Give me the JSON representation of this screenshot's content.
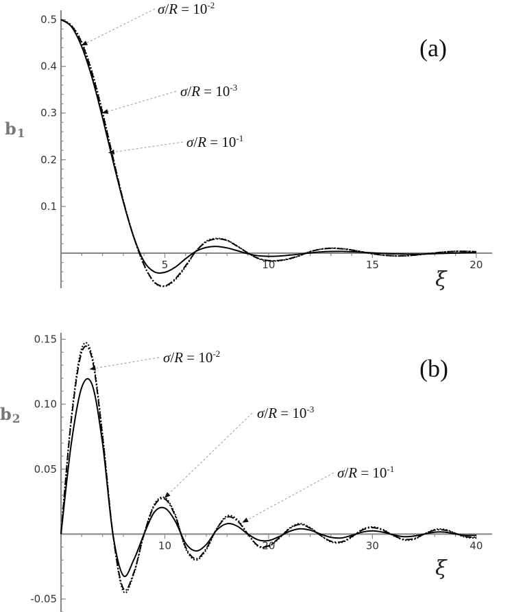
{
  "colors": {
    "axis": "#888888",
    "curve": "#000000",
    "annotation_line": "#9a9a9a"
  },
  "chart_data": [
    {
      "type": "line",
      "panel_label": "(a)",
      "xlabel": "ξ",
      "ylabel": "b",
      "ylabel_sub": "1",
      "xlim": [
        0,
        20.5
      ],
      "ylim": [
        -0.075,
        0.52
      ],
      "xticks": [
        5,
        10,
        15,
        20
      ],
      "xtick_labels": [
        "5",
        "10",
        "15",
        "20"
      ],
      "yticks": [
        0.1,
        0.2,
        0.3,
        0.4,
        0.5
      ],
      "ytick_labels": [
        "0.1",
        "0.2",
        "0.3",
        "0.4",
        "0.5"
      ],
      "series": [
        {
          "style": "solid",
          "x": [
            0,
            0.5,
            1,
            1.5,
            2,
            2.5,
            3,
            3.5,
            4,
            4.5,
            5,
            5.5,
            6,
            6.5,
            7,
            7.5,
            8,
            8.5,
            9,
            9.5,
            10,
            10.5,
            11,
            11.5,
            12,
            12.5,
            13,
            13.5,
            14,
            14.5,
            15,
            15.5,
            16,
            16.5,
            17,
            17.5,
            18,
            18.5,
            19,
            19.5,
            20
          ],
          "y": [
            0.5,
            0.485,
            0.442,
            0.375,
            0.29,
            0.198,
            0.11,
            0.035,
            -0.018,
            -0.04,
            -0.041,
            -0.03,
            -0.012,
            0.004,
            0.0122,
            0.0143,
            0.0112,
            0.0051,
            -0.0012,
            -0.0055,
            -0.0068,
            -0.0062,
            -0.0044,
            -0.0021,
            0.0005,
            0.0026,
            0.0036,
            0.0037,
            0.003,
            0.0018,
            0.0006,
            -0.0006,
            -0.0015,
            -0.002,
            -0.0021,
            -0.0018,
            -0.0012,
            -0.0005,
            0.0002,
            0.0008,
            0.0011
          ]
        },
        {
          "style": "dash-dot",
          "x": [
            0,
            0.5,
            1,
            1.5,
            2,
            2.5,
            3,
            3.5,
            4,
            4.5,
            5,
            5.5,
            6,
            6.5,
            7,
            7.5,
            8,
            8.5,
            9,
            9.5,
            10,
            10.5,
            11,
            11.5,
            12,
            12.5,
            13,
            13.5,
            14,
            14.5,
            15,
            15.5,
            16,
            16.5,
            17,
            17.5,
            18,
            18.5,
            19,
            19.5,
            20
          ],
          "y": [
            0.5,
            0.487,
            0.45,
            0.385,
            0.3,
            0.205,
            0.112,
            0.035,
            -0.025,
            -0.062,
            -0.07,
            -0.055,
            -0.027,
            0.004,
            0.024,
            0.0305,
            0.027,
            0.0145,
            0.0004,
            -0.0111,
            -0.0158,
            -0.0157,
            -0.0118,
            -0.005,
            0.0032,
            0.0082,
            0.0103,
            0.0094,
            0.0066,
            0.0026,
            -0.0012,
            -0.0042,
            -0.0057,
            -0.0057,
            -0.0043,
            -0.0021,
            0.0004,
            0.0026,
            0.0037,
            0.0038,
            0.003
          ]
        },
        {
          "style": "dotted",
          "x": [
            0,
            0.5,
            1,
            1.5,
            2,
            2.5,
            3,
            3.5,
            4,
            4.5,
            5,
            5.5,
            6,
            6.5,
            7,
            7.5,
            8,
            8.5,
            9,
            9.5,
            10,
            10.5,
            11,
            11.5,
            12,
            12.5,
            13,
            13.5,
            14,
            14.5,
            15,
            15.5,
            16,
            16.5,
            17,
            17.5,
            18,
            18.5,
            19,
            19.5,
            20
          ],
          "y": [
            0.5,
            0.488,
            0.452,
            0.388,
            0.303,
            0.207,
            0.113,
            0.035,
            -0.026,
            -0.063,
            -0.071,
            -0.057,
            -0.029,
            0.004,
            0.0255,
            0.0315,
            0.0275,
            0.015,
            0.0005,
            -0.0118,
            -0.0165,
            -0.0164,
            -0.0124,
            -0.0055,
            0.0034,
            0.0086,
            0.0108,
            0.0098,
            0.007,
            0.0028,
            -0.0014,
            -0.0045,
            -0.006,
            -0.006,
            -0.0046,
            -0.0022,
            0.0004,
            0.0027,
            0.004,
            0.004,
            0.0032
          ]
        }
      ],
      "annotations": [
        {
          "text_pre": "σ",
          "text_mid": "/",
          "text_var": "R",
          "text_eq": " = 10",
          "text_sup": "-2",
          "target": [
            1.0,
            0.445
          ]
        },
        {
          "text_pre": "σ",
          "text_mid": "/",
          "text_var": "R",
          "text_eq": " = 10",
          "text_sup": "-3",
          "target": [
            2.0,
            0.3
          ]
        },
        {
          "text_pre": "σ",
          "text_mid": "/",
          "text_var": "R",
          "text_eq": " = 10",
          "text_sup": "-1",
          "target": [
            2.3,
            0.215
          ]
        }
      ]
    },
    {
      "type": "line",
      "panel_label": "(b)",
      "xlabel": "ξ",
      "ylabel": "b",
      "ylabel_sub": "2",
      "xlim": [
        0,
        41
      ],
      "ylim": [
        -0.06,
        0.155
      ],
      "xticks": [
        10,
        20,
        30,
        40
      ],
      "xtick_labels": [
        "10",
        "20",
        "30",
        "40"
      ],
      "yticks": [
        -0.05,
        0.05,
        0.1,
        0.15
      ],
      "ytick_labels": [
        "-0.05",
        "0.05",
        "0.10",
        "0.15"
      ],
      "series": [
        {
          "style": "solid",
          "x": [
            0,
            1,
            2,
            3,
            4,
            5,
            6,
            7,
            8,
            9,
            10,
            11,
            12,
            13,
            14,
            15,
            16,
            17,
            18,
            19,
            20,
            21,
            22,
            23,
            24,
            25,
            26,
            27,
            28,
            29,
            30,
            31,
            32,
            33,
            34,
            35,
            36,
            37,
            38,
            39,
            40
          ],
          "y": [
            0,
            0.07,
            0.113,
            0.115,
            0.07,
            0.0,
            -0.032,
            -0.02,
            0.0,
            0.017,
            0.02,
            0.01,
            -0.007,
            -0.013,
            -0.008,
            0.003,
            0.008,
            0.006,
            0.0,
            -0.0045,
            -0.005,
            -0.002,
            0.002,
            0.004,
            0.003,
            0.0,
            -0.0025,
            -0.003,
            -0.001,
            0.0015,
            0.0025,
            0.0015,
            -0.0005,
            -0.002,
            -0.0015,
            0.0,
            0.0015,
            0.0015,
            0.0,
            -0.001,
            -0.001
          ]
        },
        {
          "style": "dash-dot",
          "x": [
            0,
            1,
            2,
            3,
            4,
            5,
            6,
            7,
            8,
            9,
            10,
            11,
            12,
            13,
            14,
            15,
            16,
            17,
            18,
            19,
            20,
            21,
            22,
            23,
            24,
            25,
            26,
            27,
            28,
            29,
            30,
            31,
            32,
            33,
            34,
            35,
            36,
            37,
            38,
            39,
            40
          ],
          "y": [
            0,
            0.088,
            0.14,
            0.135,
            0.075,
            0.0,
            -0.042,
            -0.03,
            0.0,
            0.022,
            0.027,
            0.014,
            -0.01,
            -0.019,
            -0.011,
            0.004,
            0.013,
            0.01,
            0.0,
            -0.009,
            -0.009,
            -0.003,
            0.004,
            0.0075,
            0.0045,
            -0.001,
            -0.0055,
            -0.006,
            -0.002,
            0.003,
            0.005,
            0.003,
            -0.001,
            -0.004,
            -0.0035,
            0.0,
            0.003,
            0.003,
            0.0005,
            -0.002,
            -0.0025
          ]
        },
        {
          "style": "dotted",
          "x": [
            0,
            1,
            2,
            3,
            4,
            5,
            6,
            7,
            8,
            9,
            10,
            11,
            12,
            13,
            14,
            15,
            16,
            17,
            18,
            19,
            20,
            21,
            22,
            23,
            24,
            25,
            26,
            27,
            28,
            29,
            30,
            31,
            32,
            33,
            34,
            35,
            36,
            37,
            38,
            39,
            40
          ],
          "y": [
            0,
            0.09,
            0.143,
            0.137,
            0.077,
            0.0,
            -0.044,
            -0.031,
            0.0,
            0.023,
            0.028,
            0.015,
            -0.011,
            -0.02,
            -0.012,
            0.004,
            0.014,
            0.011,
            0.0,
            -0.0095,
            -0.0095,
            -0.0035,
            0.0045,
            0.008,
            0.005,
            -0.001,
            -0.006,
            -0.0065,
            -0.0025,
            0.0035,
            0.0055,
            0.0035,
            -0.001,
            -0.0045,
            -0.004,
            0.0,
            0.0035,
            0.0035,
            0.0005,
            -0.0025,
            -0.003
          ]
        }
      ],
      "annotations": [
        {
          "text_pre": "σ",
          "text_mid": "/",
          "text_var": "R",
          "text_eq": " = 10",
          "text_sup": "-2",
          "target": [
            2.8,
            0.127
          ]
        },
        {
          "text_pre": "σ",
          "text_mid": "/",
          "text_var": "R",
          "text_eq": " = 10",
          "text_sup": "-3",
          "target": [
            10.0,
            0.028
          ]
        },
        {
          "text_pre": "σ",
          "text_mid": "/",
          "text_var": "R",
          "text_eq": " = 10",
          "text_sup": "-1",
          "target": [
            17.5,
            0.009
          ]
        }
      ]
    }
  ]
}
